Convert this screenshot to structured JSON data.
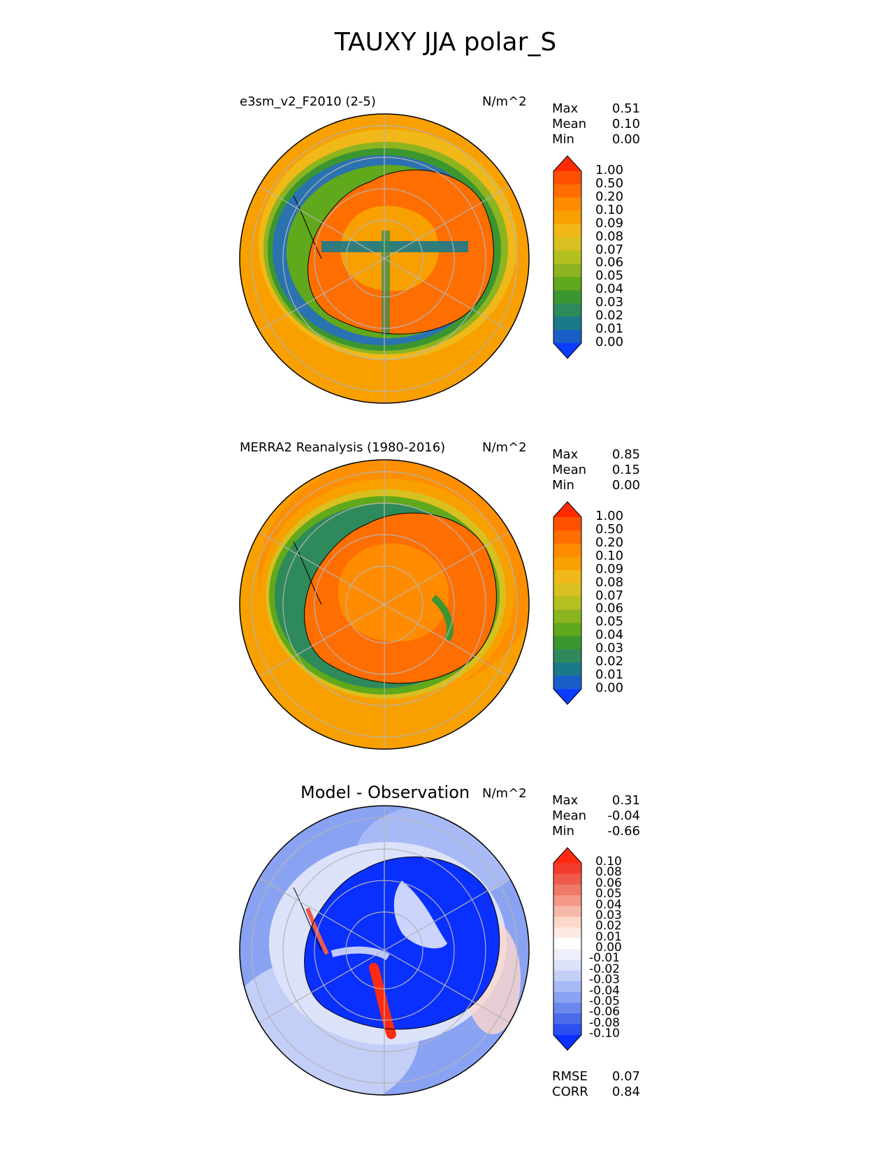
{
  "title": "TAUXY JJA polar_S",
  "stat_labels": {
    "max": "Max",
    "mean": "Mean",
    "min": "Min",
    "rmse": "RMSE",
    "corr": "CORR"
  },
  "panels": [
    {
      "title": "e3sm_v2_F2010 (2-5)",
      "units": "N/m^2",
      "stats": {
        "max": "0.51",
        "mean": "0.10",
        "min": "0.00"
      }
    },
    {
      "title": "MERRA2 Reanalysis (1980-2016)",
      "units": "N/m^2",
      "stats": {
        "max": "0.85",
        "mean": "0.15",
        "min": "0.00"
      }
    },
    {
      "title": "Model - Observation",
      "units": "N/m^2",
      "stats": {
        "max": "0.31",
        "mean": "-0.04",
        "min": "-0.66"
      },
      "metrics": {
        "rmse": "0.07",
        "corr": "0.84"
      }
    }
  ],
  "colorbars": {
    "field": {
      "ticks": [
        "1.00",
        "0.50",
        "0.20",
        "0.10",
        "0.09",
        "0.08",
        "0.07",
        "0.06",
        "0.05",
        "0.04",
        "0.03",
        "0.02",
        "0.01",
        "0.00"
      ],
      "colors": [
        "#ff2a00",
        "#ff5000",
        "#ff6e00",
        "#ff8c00",
        "#f8a000",
        "#f0b818",
        "#d8c020",
        "#b4c020",
        "#8cb420",
        "#60a81c",
        "#3c9630",
        "#2e8a5a",
        "#1a7a8a",
        "#1a5ec8",
        "#0a3cff"
      ]
    },
    "diff": {
      "ticks": [
        "0.10",
        "0.08",
        "0.06",
        "0.05",
        "0.04",
        "0.03",
        "0.02",
        "0.01",
        "0.00",
        "-0.01",
        "-0.02",
        "-0.03",
        "-0.04",
        "-0.05",
        "-0.06",
        "-0.08",
        "-0.10"
      ],
      "colors": [
        "#ff2a10",
        "#f43c2c",
        "#f05a4a",
        "#f07868",
        "#f49888",
        "#f8b8aa",
        "#fcd8cc",
        "#fdeae4",
        "#ffffff",
        "#eef0fc",
        "#dce2fa",
        "#c4cff8",
        "#a8baf5",
        "#8aa2f2",
        "#6a88ee",
        "#4a6cea",
        "#2a4ef0",
        "#0a30ff"
      ]
    }
  },
  "chart_data": [
    {
      "type": "heatmap",
      "title": "e3sm_v2_F2010 (2-5)",
      "units": "N/m^2",
      "projection": "south polar stereographic",
      "levels": [
        0.0,
        0.01,
        0.02,
        0.03,
        0.04,
        0.05,
        0.06,
        0.07,
        0.08,
        0.09,
        0.1,
        0.2,
        0.5,
        1.0
      ],
      "stats": {
        "max": 0.51,
        "mean": 0.1,
        "min": 0.0
      },
      "description_values": {
        "open_ocean": 0.1,
        "sea_ice_margin": 0.03,
        "continent_interior": 0.2
      }
    },
    {
      "type": "heatmap",
      "title": "MERRA2 Reanalysis (1980-2016)",
      "units": "N/m^2",
      "projection": "south polar stereographic",
      "levels": [
        0.0,
        0.01,
        0.02,
        0.03,
        0.04,
        0.05,
        0.06,
        0.07,
        0.08,
        0.09,
        0.1,
        0.2,
        0.5,
        1.0
      ],
      "stats": {
        "max": 0.85,
        "mean": 0.15,
        "min": 0.0
      },
      "description_values": {
        "open_ocean": 0.1,
        "southern_ocean_belt": 0.2,
        "sea_ice_margin": 0.04,
        "continent_interior": 0.2
      }
    },
    {
      "type": "heatmap",
      "title": "Model - Observation",
      "units": "N/m^2",
      "projection": "south polar stereographic",
      "levels": [
        -0.1,
        -0.08,
        -0.06,
        -0.05,
        -0.04,
        -0.03,
        -0.02,
        -0.01,
        0.0,
        0.01,
        0.02,
        0.03,
        0.04,
        0.05,
        0.06,
        0.08,
        0.1
      ],
      "stats": {
        "max": 0.31,
        "mean": -0.04,
        "min": -0.66
      },
      "metrics": {
        "rmse": 0.07,
        "corr": 0.84
      },
      "description_values": {
        "open_ocean": -0.03,
        "continent": -0.1,
        "west_antarctic_coast": 0.1
      }
    }
  ]
}
